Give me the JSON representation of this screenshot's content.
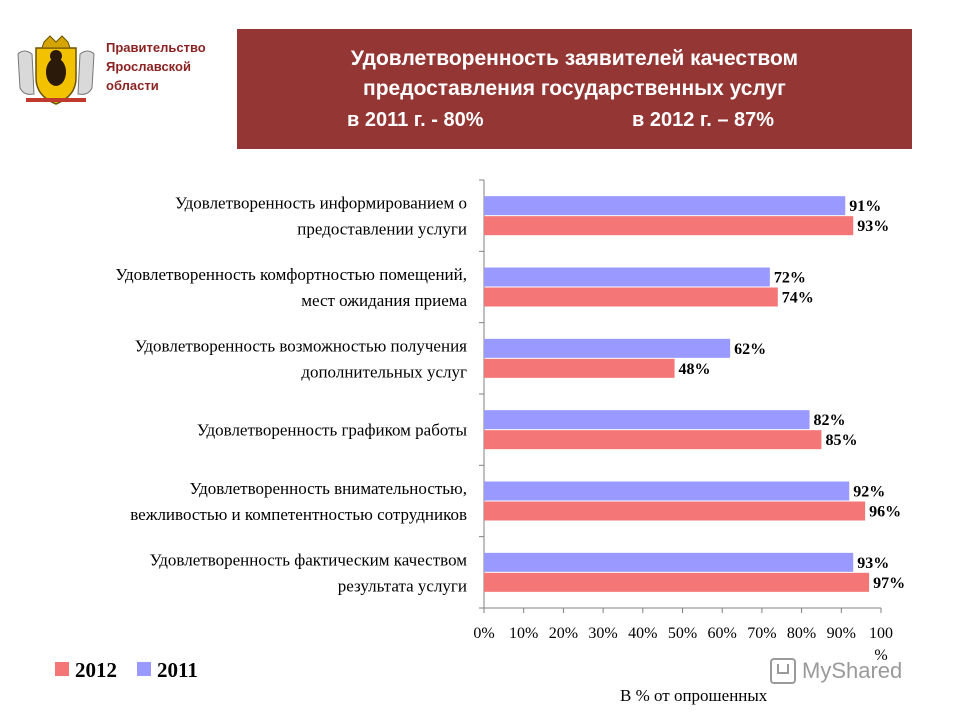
{
  "header": {
    "org_line1": "Правительство",
    "org_line2": "Ярославской",
    "org_line3": "области",
    "title_line1": "Удовлетворенность заявителей качеством",
    "title_line2": "предоставления государственных  услуг",
    "stat_2011": "в 2011 г. - 80%",
    "stat_2012": "в 2012 г. – 87%"
  },
  "colors": {
    "banner": "#943634",
    "series_2012": "#f47676",
    "series_2011": "#9999ff"
  },
  "chart_data": {
    "type": "bar",
    "orientation": "horizontal",
    "categories": [
      [
        "Удовлетворенность информированием о",
        "предоставлении услуги"
      ],
      [
        "Удовлетворенность комфортностью помещений,",
        "мест ожидания приема"
      ],
      [
        "Удовлетворенность возможностью получения",
        "дополнительных услуг"
      ],
      [
        "Удовлетворенность графиком работы"
      ],
      [
        "Удовлетворенность внимательностью,",
        "вежливостью и компетентностью сотрудников"
      ],
      [
        "Удовлетворенность фактическим качеством",
        "результата услуги"
      ]
    ],
    "series": [
      {
        "name": "2012",
        "values": [
          93,
          74,
          48,
          85,
          96,
          97
        ]
      },
      {
        "name": "2011",
        "values": [
          91,
          72,
          62,
          82,
          92,
          93
        ]
      }
    ],
    "data_labels": {
      "2012": [
        "93%",
        "74%",
        "48%",
        "85%",
        "96%",
        "97%"
      ],
      "2011": [
        "91%",
        "72%",
        "62%",
        "82%",
        "92%",
        "93%"
      ]
    },
    "x_ticks": [
      "0%",
      "10%",
      "20%",
      "30%",
      "40%",
      "50%",
      "60%",
      "70%",
      "80%",
      "90%",
      "100"
    ],
    "x_tick_extra": "%",
    "xlabel": "В % от опрошенных",
    "xlim": [
      0,
      100
    ],
    "legend_position": "bottom-left"
  },
  "legend": {
    "label_2012": "2012",
    "label_2011": "2011"
  },
  "watermark": {
    "text": "MyShared"
  }
}
